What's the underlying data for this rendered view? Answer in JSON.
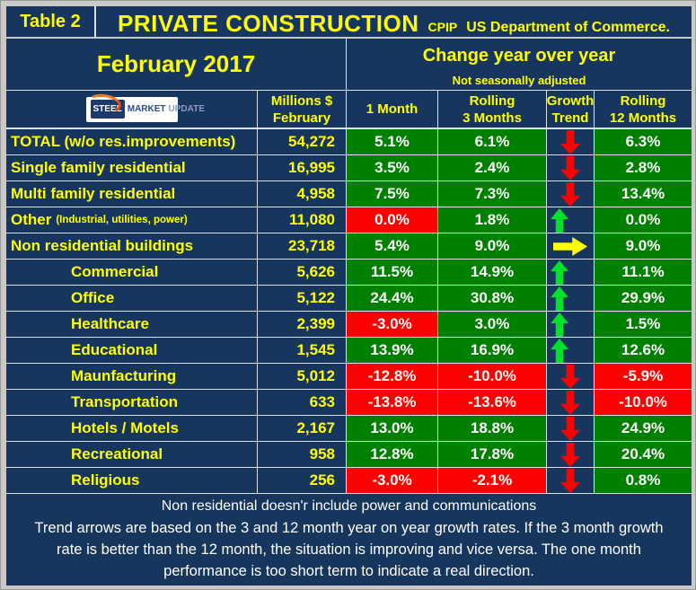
{
  "header": {
    "table_label": "Table 2",
    "title": "PRIVATE CONSTRUCTION",
    "program": "CPIP",
    "source": "US Department of Commerce."
  },
  "period": {
    "month": "February 2017",
    "change_title": "Change year over year",
    "change_note": "Not seasonally adjusted"
  },
  "logo": {
    "steel": "STEEL",
    "market": "MARKET",
    "update": "UPDATE"
  },
  "columns": {
    "millions_line1": "Millions $",
    "millions_line2": "February",
    "m1": "1 Month",
    "m3_line1": "Rolling",
    "m3_line2": "3 Months",
    "growth_line1": "Growth",
    "growth_line2": "Trend",
    "m12_line1": "Rolling",
    "m12_line2": "12 Months"
  },
  "colors": {
    "background": "#17365d",
    "frame": "#c9c9c9",
    "positive_cell": "#008000",
    "negative_cell": "#fd0000",
    "text_accent": "#ffff00",
    "arrow_up": "#00e12c",
    "arrow_down": "#fe0000",
    "arrow_flat": "#ffff00"
  },
  "rows": [
    {
      "label": "TOTAL (w/o res.improvements)",
      "note": "",
      "indent": false,
      "millions": "54,272",
      "m1": "5.1%",
      "m1_bg": "green",
      "m3": "6.1%",
      "m3_bg": "green",
      "trend": "down",
      "m12": "6.3%",
      "m12_bg": "green"
    },
    {
      "label": "Single family residential",
      "note": "",
      "indent": false,
      "millions": "16,995",
      "m1": "3.5%",
      "m1_bg": "green",
      "m3": "2.4%",
      "m3_bg": "green",
      "trend": "down",
      "m12": "2.8%",
      "m12_bg": "green"
    },
    {
      "label": "Multi family residential",
      "note": "",
      "indent": false,
      "millions": "4,958",
      "m1": "7.5%",
      "m1_bg": "green",
      "m3": "7.3%",
      "m3_bg": "green",
      "trend": "down",
      "m12": "13.4%",
      "m12_bg": "green"
    },
    {
      "label": "Other",
      "note": "(Industrial, utilities, power)",
      "indent": false,
      "millions": "11,080",
      "m1": "0.0%",
      "m1_bg": "red",
      "m3": "1.8%",
      "m3_bg": "green",
      "trend": "up",
      "m12": "0.0%",
      "m12_bg": "green"
    },
    {
      "label": "Non residential buildings",
      "note": "",
      "indent": false,
      "millions": "23,718",
      "m1": "5.4%",
      "m1_bg": "green",
      "m3": "9.0%",
      "m3_bg": "green",
      "trend": "right",
      "m12": "9.0%",
      "m12_bg": "green"
    },
    {
      "label": "Commercial",
      "note": "",
      "indent": true,
      "millions": "5,626",
      "m1": "11.5%",
      "m1_bg": "green",
      "m3": "14.9%",
      "m3_bg": "green",
      "trend": "up",
      "m12": "11.1%",
      "m12_bg": "green"
    },
    {
      "label": "Office",
      "note": "",
      "indent": true,
      "millions": "5,122",
      "m1": "24.4%",
      "m1_bg": "green",
      "m3": "30.8%",
      "m3_bg": "green",
      "trend": "up",
      "m12": "29.9%",
      "m12_bg": "green"
    },
    {
      "label": "Healthcare",
      "note": "",
      "indent": true,
      "millions": "2,399",
      "m1": "-3.0%",
      "m1_bg": "red",
      "m3": "3.0%",
      "m3_bg": "green",
      "trend": "up",
      "m12": "1.5%",
      "m12_bg": "green"
    },
    {
      "label": "Educational",
      "note": "",
      "indent": true,
      "millions": "1,545",
      "m1": "13.9%",
      "m1_bg": "green",
      "m3": "16.9%",
      "m3_bg": "green",
      "trend": "up",
      "m12": "12.6%",
      "m12_bg": "green"
    },
    {
      "label": "Maunfacturing",
      "note": "",
      "indent": true,
      "millions": "5,012",
      "m1": "-12.8%",
      "m1_bg": "red",
      "m3": "-10.0%",
      "m3_bg": "red",
      "trend": "down",
      "m12": "-5.9%",
      "m12_bg": "red"
    },
    {
      "label": "Transportation",
      "note": "",
      "indent": true,
      "millions": "633",
      "m1": "-13.8%",
      "m1_bg": "red",
      "m3": "-13.6%",
      "m3_bg": "red",
      "trend": "down",
      "m12": "-10.0%",
      "m12_bg": "red"
    },
    {
      "label": "Hotels / Motels",
      "note": "",
      "indent": true,
      "millions": "2,167",
      "m1": "13.0%",
      "m1_bg": "green",
      "m3": "18.8%",
      "m3_bg": "green",
      "trend": "down",
      "m12": "24.9%",
      "m12_bg": "green"
    },
    {
      "label": "Recreational",
      "note": "",
      "indent": true,
      "millions": "958",
      "m1": "12.8%",
      "m1_bg": "green",
      "m3": "17.8%",
      "m3_bg": "green",
      "trend": "down",
      "m12": "20.4%",
      "m12_bg": "green"
    },
    {
      "label": "Religious",
      "note": "",
      "indent": true,
      "millions": "256",
      "m1": "-3.0%",
      "m1_bg": "red",
      "m3": "-2.1%",
      "m3_bg": "red",
      "trend": "down",
      "m12": "0.8%",
      "m12_bg": "green"
    }
  ],
  "footer": {
    "note1": "Non residential doesn'r include power and communications",
    "note2": "Trend arrows are based on the 3 and 12 month year on year growth rates. If the 3 month growth rate is better than the 12 month, the situation is improving and vice versa. The one month performance is too short term to indicate a real direction."
  },
  "chart_data": {
    "type": "table",
    "title": "Table 2 — PRIVATE CONSTRUCTION (CPIP, US Department of Commerce), February 2017, change year over year, not seasonally adjusted",
    "columns": [
      "Category",
      "Millions $ February",
      "1 Month",
      "Rolling 3 Months",
      "Growth Trend",
      "Rolling 12 Months"
    ],
    "rows": [
      [
        "TOTAL (w/o res.improvements)",
        54272,
        5.1,
        6.1,
        "down",
        6.3
      ],
      [
        "Single family residential",
        16995,
        3.5,
        2.4,
        "down",
        2.8
      ],
      [
        "Multi family residential",
        4958,
        7.5,
        7.3,
        "down",
        13.4
      ],
      [
        "Other (Industrial, utilities, power)",
        11080,
        0.0,
        1.8,
        "up",
        0.0
      ],
      [
        "Non residential buildings",
        23718,
        5.4,
        9.0,
        "flat",
        9.0
      ],
      [
        "Commercial",
        5626,
        11.5,
        14.9,
        "up",
        11.1
      ],
      [
        "Office",
        5122,
        24.4,
        30.8,
        "up",
        29.9
      ],
      [
        "Healthcare",
        2399,
        -3.0,
        3.0,
        "up",
        1.5
      ],
      [
        "Educational",
        1545,
        13.9,
        16.9,
        "up",
        12.6
      ],
      [
        "Maunfacturing",
        5012,
        -12.8,
        -10.0,
        "down",
        -5.9
      ],
      [
        "Transportation",
        633,
        -13.8,
        -13.6,
        "down",
        -10.0
      ],
      [
        "Hotels / Motels",
        2167,
        13.0,
        18.8,
        "down",
        24.9
      ],
      [
        "Recreational",
        958,
        12.8,
        17.8,
        "down",
        20.4
      ],
      [
        "Religious",
        256,
        -3.0,
        -2.1,
        "down",
        0.8
      ]
    ]
  }
}
